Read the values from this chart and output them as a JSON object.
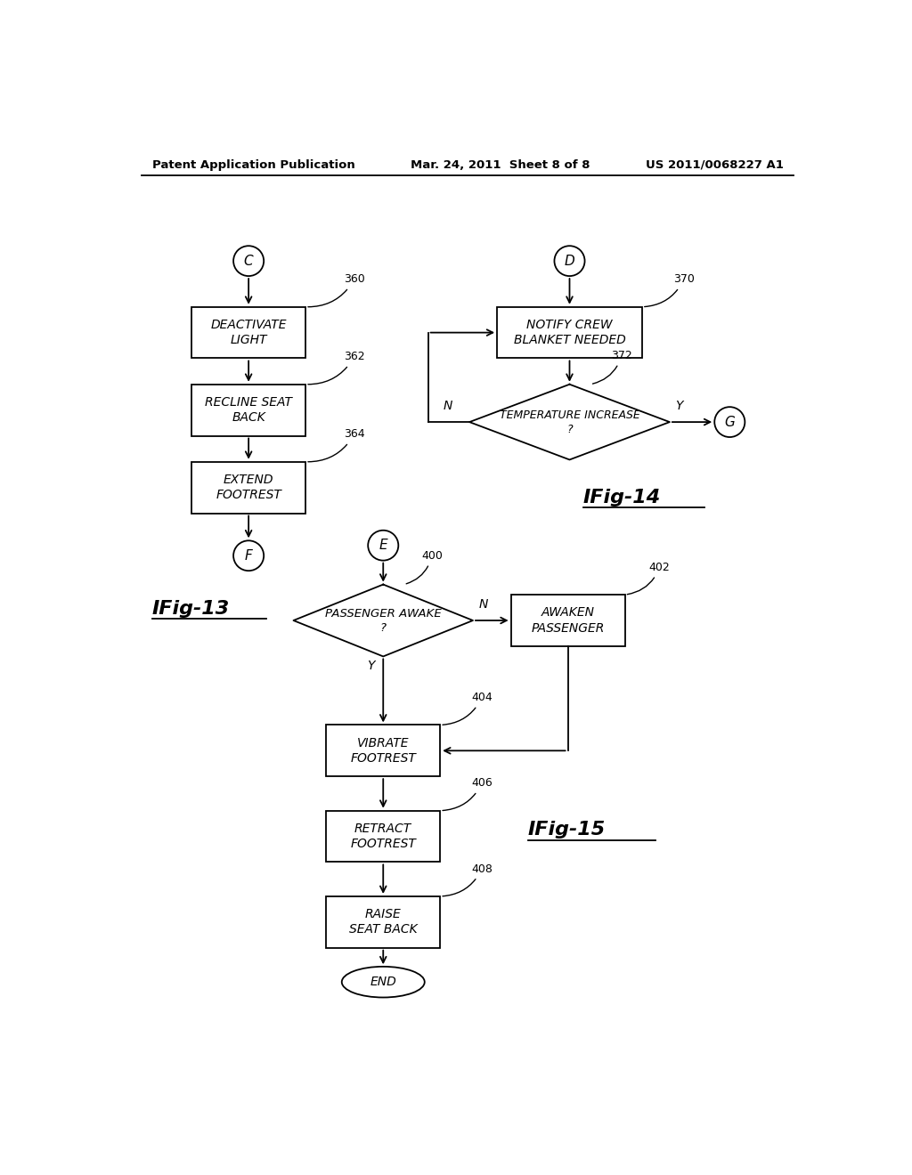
{
  "header_left": "Patent Application Publication",
  "header_mid": "Mar. 24, 2011  Sheet 8 of 8",
  "header_right": "US 2011/0068227 A1",
  "background_color": "#ffffff",
  "fig13_label": "IFig-13",
  "fig14_label": "IFig-14",
  "fig15_label": "IFig-15"
}
